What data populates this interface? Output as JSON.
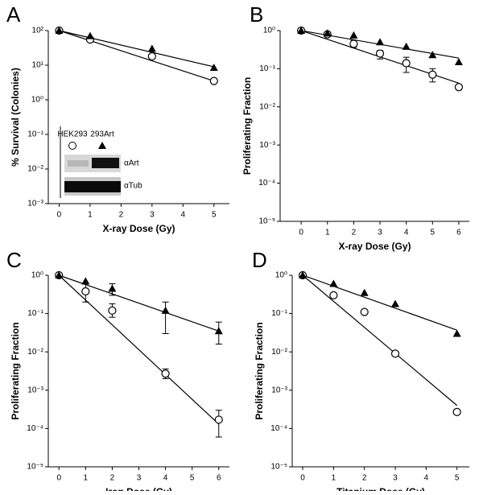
{
  "chart_data": [
    {
      "type": "scatter",
      "panel_label": "A",
      "xlabel": "X-ray Dose (Gy)",
      "ylabel": "% Survival (Colonies)",
      "yscale": "log",
      "xlim": [
        -0.35,
        5.5
      ],
      "xticks": [
        0,
        1,
        2,
        3,
        4,
        5
      ],
      "ylim": [
        0.001,
        100
      ],
      "yticks": [
        {
          "value": 0.001,
          "label": "10⁻³"
        },
        {
          "value": 0.01,
          "label": "10⁻²"
        },
        {
          "value": 0.1,
          "label": "10⁻¹"
        },
        {
          "value": 1,
          "label": "10⁰"
        },
        {
          "value": 10,
          "label": "10¹"
        },
        {
          "value": 100,
          "label": "10²"
        }
      ],
      "series": [
        {
          "marker": "line",
          "color": "#000000",
          "x": [
            0,
            5
          ],
          "values": [
            100,
            3.5
          ]
        },
        {
          "marker": "line",
          "color": "#000000",
          "x": [
            0,
            5
          ],
          "values": [
            100,
            9
          ]
        },
        {
          "name": "HEK293",
          "marker": "circle",
          "color": "#000000",
          "x": [
            0,
            1,
            3,
            5
          ],
          "values": [
            100,
            55,
            18,
            3.5
          ]
        },
        {
          "name": "293Art",
          "marker": "triangle",
          "color": "#000000",
          "x": [
            0,
            1,
            3,
            5
          ],
          "values": [
            100,
            70,
            30,
            8.5
          ]
        }
      ],
      "inset": {
        "bands": [
          "αArt",
          "αTub"
        ]
      }
    },
    {
      "type": "scatter",
      "panel_label": "B",
      "xlabel": "X-ray Dose (Gy)",
      "ylabel": "Proliferating Fraction",
      "yscale": "log",
      "xlim": [
        -0.8,
        6.4
      ],
      "xticks": [
        0,
        1,
        2,
        3,
        4,
        5,
        6
      ],
      "ylim": [
        1e-05,
        1
      ],
      "yticks": [
        {
          "value": 1e-05,
          "label": "10⁻⁵"
        },
        {
          "value": 0.0001,
          "label": "10⁻⁴"
        },
        {
          "value": 0.001,
          "label": "10⁻³"
        },
        {
          "value": 0.01,
          "label": "10⁻²"
        },
        {
          "value": 0.1,
          "label": "10⁻¹"
        },
        {
          "value": 1,
          "label": "10⁰"
        }
      ],
      "series": [
        {
          "marker": "line",
          "color": "#000000",
          "x": [
            0,
            6
          ],
          "values": [
            1,
            0.042
          ]
        },
        {
          "marker": "line",
          "color": "#000000",
          "x": [
            0,
            6
          ],
          "values": [
            1,
            0.19
          ]
        },
        {
          "marker": "circle",
          "color": "#000000",
          "x": [
            0,
            1,
            2,
            3,
            4,
            5,
            6
          ],
          "values": [
            1,
            0.8,
            0.45,
            0.25,
            0.14,
            0.07,
            0.033
          ],
          "errors": [
            null,
            null,
            [
              0.36,
              0.56
            ],
            [
              0.18,
              0.3
            ],
            [
              0.08,
              0.2
            ],
            [
              0.045,
              0.1
            ],
            [
              0.028,
              0.038
            ]
          ]
        },
        {
          "marker": "triangle",
          "color": "#000000",
          "x": [
            0,
            1,
            2,
            3,
            4,
            5,
            6
          ],
          "values": [
            1,
            0.85,
            0.75,
            0.5,
            0.38,
            0.23,
            0.15
          ]
        }
      ]
    },
    {
      "type": "scatter",
      "panel_label": "C",
      "xlabel": "Iron Dose (Gy)",
      "ylabel": "Proliferating Fraction",
      "yscale": "log",
      "xlim": [
        -0.4,
        6.4
      ],
      "xticks": [
        0,
        1,
        2,
        3,
        4,
        5,
        6
      ],
      "ylim": [
        1e-05,
        1
      ],
      "yticks": [
        {
          "value": 1e-05,
          "label": "10⁻⁵"
        },
        {
          "value": 0.0001,
          "label": "10⁻⁴"
        },
        {
          "value": 0.001,
          "label": "10⁻³"
        },
        {
          "value": 0.01,
          "label": "10⁻²"
        },
        {
          "value": 0.1,
          "label": "10⁻¹"
        },
        {
          "value": 1,
          "label": "10⁰"
        }
      ],
      "series": [
        {
          "marker": "line",
          "color": "#000000",
          "x": [
            0,
            6
          ],
          "values": [
            1,
            0.00013
          ]
        },
        {
          "marker": "line",
          "color": "#000000",
          "x": [
            0,
            6
          ],
          "values": [
            1,
            0.035
          ]
        },
        {
          "marker": "circle",
          "color": "#000000",
          "x": [
            0,
            1,
            2,
            4,
            6
          ],
          "values": [
            1,
            0.38,
            0.12,
            0.0027,
            0.00017
          ],
          "errors": [
            null,
            [
              0.2,
              0.6
            ],
            [
              0.08,
              0.18
            ],
            [
              0.002,
              0.0036
            ],
            [
              6e-05,
              0.0003
            ]
          ]
        },
        {
          "marker": "triangle",
          "color": "#000000",
          "x": [
            0,
            1,
            2,
            4,
            6
          ],
          "values": [
            1,
            0.7,
            0.45,
            0.12,
            0.035
          ],
          "errors": [
            null,
            null,
            [
              0.3,
              0.6
            ],
            [
              0.03,
              0.2
            ],
            [
              0.016,
              0.06
            ]
          ]
        }
      ]
    },
    {
      "type": "scatter",
      "panel_label": "D",
      "xlabel": "Titanium Dose (Gy)",
      "ylabel": "Proliferating Fraction",
      "yscale": "log",
      "xlim": [
        -0.34,
        5.4
      ],
      "xticks": [
        0,
        1,
        2,
        3,
        4,
        5
      ],
      "ylim": [
        1e-05,
        1
      ],
      "yticks": [
        {
          "value": 1e-05,
          "label": "10⁻⁵"
        },
        {
          "value": 0.0001,
          "label": "10⁻⁴"
        },
        {
          "value": 0.001,
          "label": "10⁻³"
        },
        {
          "value": 0.01,
          "label": "10⁻²"
        },
        {
          "value": 0.1,
          "label": "10⁻¹"
        },
        {
          "value": 1,
          "label": "10⁰"
        }
      ],
      "series": [
        {
          "marker": "line",
          "color": "#000000",
          "x": [
            0,
            5
          ],
          "values": [
            1,
            0.0004
          ]
        },
        {
          "marker": "line",
          "color": "#000000",
          "x": [
            0,
            5
          ],
          "values": [
            1,
            0.037
          ]
        },
        {
          "marker": "circle",
          "color": "#000000",
          "x": [
            0,
            1,
            2,
            3,
            5
          ],
          "values": [
            1,
            0.3,
            0.11,
            0.009,
            0.00027
          ]
        },
        {
          "marker": "triangle",
          "color": "#000000",
          "x": [
            0,
            1,
            2,
            3,
            5
          ],
          "values": [
            1,
            0.6,
            0.35,
            0.18,
            0.03
          ]
        }
      ]
    }
  ]
}
